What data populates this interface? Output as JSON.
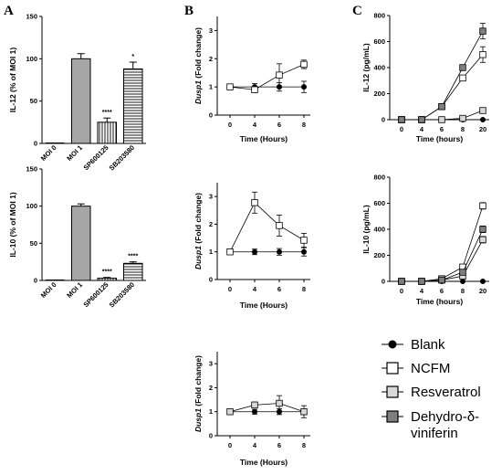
{
  "colors": {
    "blank": "#000000",
    "ncfm": "#ffffff",
    "resveratrol": "#d9d9d9",
    "dehydro": "#7f7f7f",
    "bar_fill": "#a6a6a6"
  },
  "legend": {
    "items": [
      {
        "label": "Blank",
        "marker": "circle",
        "color": "#000000"
      },
      {
        "label": "NCFM",
        "marker": "square",
        "color": "#ffffff"
      },
      {
        "label": "Resveratrol",
        "marker": "square",
        "color": "#d9d9d9"
      },
      {
        "label": "Dehydro-δ-",
        "label2": "viniferin",
        "marker": "square",
        "color": "#7f7f7f"
      }
    ]
  },
  "chart_data": [
    {
      "panel": "A",
      "type": "bar",
      "categories": [
        "MOI 0",
        "MOI 1",
        "SP600125",
        "SB203580"
      ],
      "values": [
        0,
        100,
        25,
        88
      ],
      "errors": [
        0,
        6,
        5,
        8
      ],
      "patterns": [
        "none",
        "solid",
        "vertical",
        "horizontal"
      ],
      "significance": [
        "",
        "",
        "****",
        "*"
      ],
      "ylabel": "IL-12 (% of MOI 1)",
      "yticks": [
        0,
        50,
        100,
        150
      ],
      "ylim": [
        0,
        150
      ]
    },
    {
      "type": "bar",
      "categories": [
        "MOI 0",
        "MOI 1",
        "SP600125",
        "SB203580"
      ],
      "values": [
        0,
        100,
        3,
        23
      ],
      "errors": [
        0,
        3,
        1,
        2
      ],
      "patterns": [
        "none",
        "solid",
        "vertical",
        "horizontal"
      ],
      "significance": [
        "",
        "",
        "****",
        "****"
      ],
      "ylabel": "IL-10 (% of MOI 1)",
      "yticks": [
        0,
        50,
        100,
        150
      ],
      "ylim": [
        0,
        150
      ]
    },
    {
      "panel": "B",
      "type": "line",
      "x": [
        0,
        4,
        6,
        8
      ],
      "xlabel": "Time (Hours)",
      "ylabel_em": "Dusp1",
      "ylabel_rest": " (Fold change)",
      "yticks": [
        0,
        1,
        2,
        3
      ],
      "ylim": [
        0,
        3.5
      ],
      "series": [
        {
          "key": "blank",
          "values": [
            1.0,
            1.0,
            1.0,
            1.0
          ],
          "errors": [
            0.05,
            0.12,
            0.15,
            0.2
          ]
        },
        {
          "key": "ncfm",
          "values": [
            1.0,
            0.9,
            1.42,
            1.8
          ],
          "errors": [
            0.05,
            0.1,
            0.4,
            0.15
          ]
        }
      ]
    },
    {
      "type": "line",
      "x": [
        0,
        4,
        6,
        8
      ],
      "xlabel": "Time (Hours)",
      "ylabel_em": "Dusp1",
      "ylabel_rest": " (Fold change)",
      "yticks": [
        0,
        1,
        2,
        3
      ],
      "ylim": [
        0,
        3.5
      ],
      "series": [
        {
          "key": "blank",
          "values": [
            1.0,
            1.0,
            1.0,
            1.0
          ],
          "errors": [
            0.05,
            0.1,
            0.12,
            0.15
          ]
        },
        {
          "key": "ncfm",
          "values": [
            1.0,
            2.78,
            1.95,
            1.42
          ],
          "errors": [
            0.05,
            0.38,
            0.38,
            0.25
          ]
        }
      ]
    },
    {
      "type": "line",
      "x": [
        0,
        4,
        6,
        8
      ],
      "xlabel": "Time (Hours)",
      "ylabel_em": "Dusp1",
      "ylabel_rest": " (Fold change)",
      "yticks": [
        0,
        1,
        2,
        3
      ],
      "ylim": [
        0,
        3.5
      ],
      "series": [
        {
          "key": "blank",
          "values": [
            1.0,
            1.0,
            1.0,
            1.0
          ],
          "errors": [
            0.05,
            0.1,
            0.12,
            0.12
          ]
        },
        {
          "key": "resveratrol",
          "values": [
            1.0,
            1.28,
            1.35,
            1.0
          ],
          "errors": [
            0.05,
            0.12,
            0.32,
            0.25
          ]
        }
      ]
    },
    {
      "panel": "C",
      "type": "line",
      "x": [
        "0",
        "4",
        "6",
        "8",
        "20"
      ],
      "xlabel": "Time (hours)",
      "ylabel": "IL-12 (pg/mL)",
      "yticks": [
        0,
        200,
        400,
        600,
        800
      ],
      "ylim": [
        0,
        800
      ],
      "series": [
        {
          "key": "blank",
          "values": [
            0,
            0,
            0,
            0,
            0
          ],
          "errors": [
            0,
            0,
            0,
            0,
            0
          ]
        },
        {
          "key": "ncfm",
          "values": [
            0,
            0,
            100,
            320,
            500
          ],
          "errors": [
            0,
            0,
            12,
            20,
            60
          ]
        },
        {
          "key": "resveratrol",
          "values": [
            0,
            0,
            0,
            10,
            70
          ],
          "errors": [
            0,
            0,
            0,
            5,
            10
          ]
        },
        {
          "key": "dehydro",
          "values": [
            0,
            0,
            100,
            400,
            680
          ],
          "errors": [
            0,
            0,
            10,
            20,
            60
          ]
        }
      ]
    },
    {
      "type": "line",
      "x": [
        "0",
        "4",
        "6",
        "8",
        "20"
      ],
      "xlabel": "Time (hours)",
      "ylabel": "IL-10 (pg/mL)",
      "yticks": [
        0,
        200,
        400,
        600,
        800
      ],
      "ylim": [
        0,
        800
      ],
      "series": [
        {
          "key": "blank",
          "values": [
            0,
            0,
            0,
            0,
            0
          ],
          "errors": [
            0,
            0,
            0,
            0,
            0
          ]
        },
        {
          "key": "ncfm",
          "values": [
            0,
            0,
            20,
            110,
            580
          ],
          "errors": [
            0,
            0,
            5,
            10,
            25
          ]
        },
        {
          "key": "resveratrol",
          "values": [
            0,
            0,
            10,
            40,
            320
          ],
          "errors": [
            0,
            0,
            3,
            8,
            25
          ]
        },
        {
          "key": "dehydro",
          "values": [
            0,
            0,
            10,
            70,
            400
          ],
          "errors": [
            0,
            0,
            3,
            8,
            25
          ]
        }
      ]
    }
  ]
}
